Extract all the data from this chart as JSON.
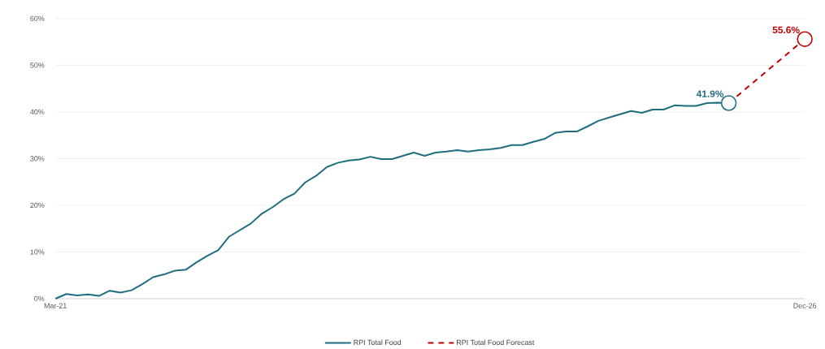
{
  "chart_data": {
    "type": "line",
    "xlim": [
      "2021-03",
      "2026-12"
    ],
    "xticks": [
      {
        "value": "2021-03",
        "label": "Mar-21"
      },
      {
        "value": "2026-12",
        "label": "Dec-26"
      }
    ],
    "ylim": [
      0,
      60
    ],
    "yticks": [
      {
        "value": 0,
        "label": "0%"
      },
      {
        "value": 10,
        "label": "10%"
      },
      {
        "value": 20,
        "label": "20%"
      },
      {
        "value": 30,
        "label": "30%"
      },
      {
        "value": 40,
        "label": "40%"
      },
      {
        "value": 50,
        "label": "50%"
      },
      {
        "value": 60,
        "label": "60%"
      }
    ],
    "grid": "y",
    "legend": "bottom",
    "series": [
      {
        "name": "RPI Total Food",
        "color": "#1f6e80",
        "line_style": "solid",
        "x": [
          "2021-03",
          "2021-04",
          "2021-05",
          "2021-06",
          "2021-07",
          "2021-08",
          "2021-09",
          "2021-10",
          "2021-11",
          "2021-12",
          "2022-01",
          "2022-02",
          "2022-03",
          "2022-04",
          "2022-05",
          "2022-06",
          "2022-07",
          "2022-08",
          "2022-09",
          "2022-10",
          "2022-11",
          "2022-12",
          "2023-01",
          "2023-02",
          "2023-03",
          "2023-04",
          "2023-05",
          "2023-06",
          "2023-07",
          "2023-08",
          "2023-09",
          "2023-10",
          "2023-11",
          "2023-12",
          "2024-01",
          "2024-02",
          "2024-03",
          "2024-04",
          "2024-05",
          "2024-06",
          "2024-07",
          "2024-08",
          "2024-09",
          "2024-10",
          "2024-11",
          "2024-12",
          "2025-01",
          "2025-02",
          "2025-03",
          "2025-04",
          "2025-05",
          "2025-06",
          "2025-07",
          "2025-08",
          "2025-09",
          "2025-10",
          "2025-11",
          "2025-12",
          "2026-01",
          "2026-02",
          "2026-03",
          "2026-04",
          "2026-05"
        ],
        "values": [
          0.0,
          1.0,
          0.7,
          0.9,
          0.6,
          1.7,
          1.3,
          1.8,
          3.1,
          4.6,
          5.2,
          6.0,
          6.2,
          7.8,
          9.2,
          10.4,
          13.3,
          14.7,
          16.1,
          18.2,
          19.6,
          21.3,
          22.5,
          24.9,
          26.3,
          28.2,
          29.1,
          29.6,
          29.8,
          30.4,
          29.9,
          29.9,
          30.6,
          31.3,
          30.6,
          31.3,
          31.5,
          31.8,
          31.5,
          31.8,
          32.0,
          32.3,
          32.9,
          32.9,
          33.6,
          34.2,
          35.5,
          35.8,
          35.8,
          36.9,
          38.1,
          38.8,
          39.5,
          40.2,
          39.8,
          40.5,
          40.5,
          41.4,
          41.3,
          41.3,
          41.9,
          42.0,
          41.9
        ]
      },
      {
        "name": "RPI Total Food Forecast",
        "color": "#c00000",
        "line_style": "dashed",
        "x": [
          "2026-05",
          "2026-12"
        ],
        "values": [
          41.9,
          55.6
        ]
      }
    ],
    "annotations": [
      {
        "text": "41.9%",
        "x": "2026-05",
        "y": 41.9
      },
      {
        "text": "55.6%",
        "x": "2026-12",
        "y": 55.6
      }
    ]
  }
}
